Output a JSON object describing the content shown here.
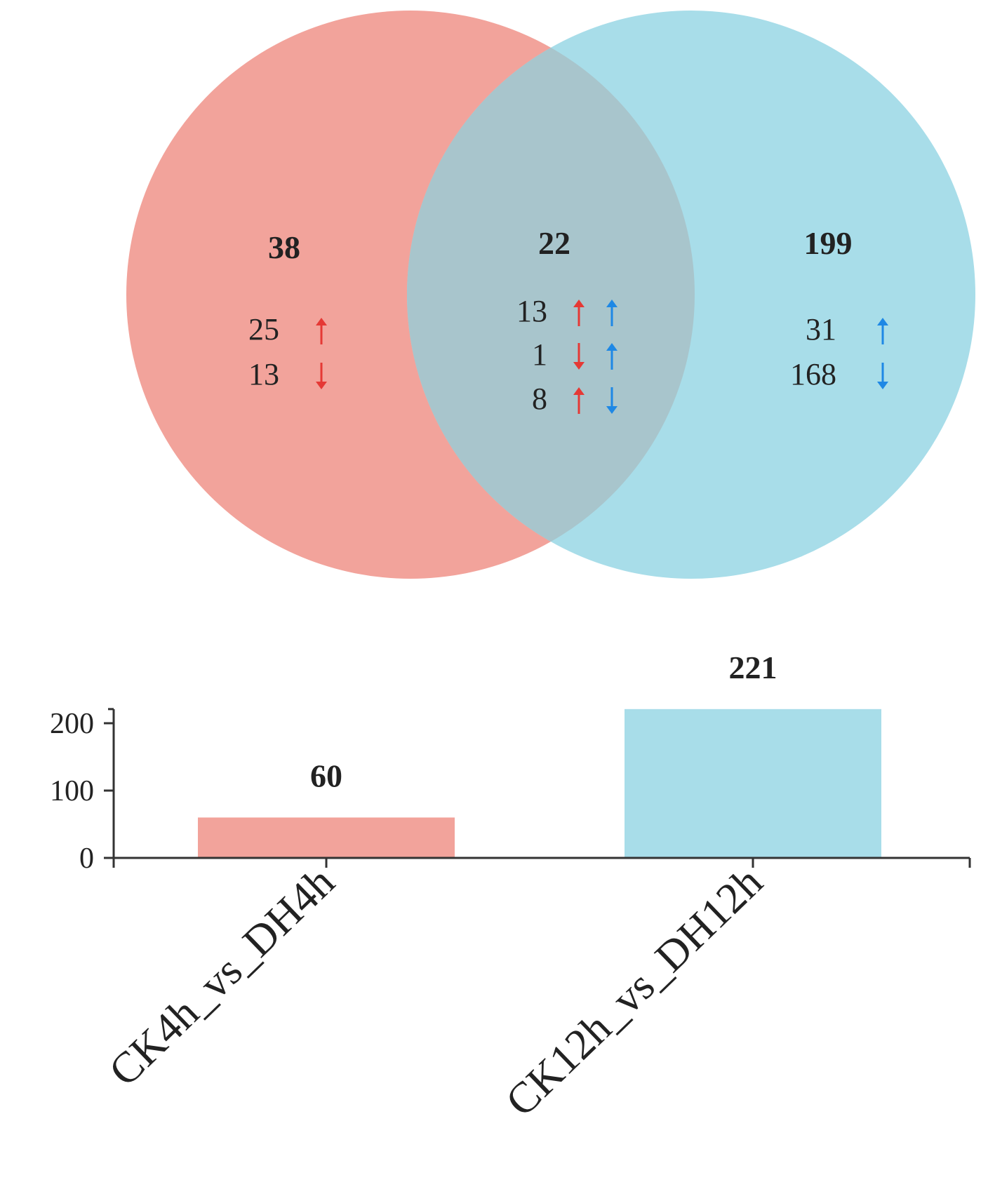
{
  "colors": {
    "group_a": "#f2a39b",
    "group_b": "#a8dde9",
    "overlap": "#a8c5cc",
    "up_down_a": "#e53935",
    "up_down_b": "#1e88e5",
    "axis": "#333333"
  },
  "chart_data": [
    {
      "type": "venn",
      "sets": [
        "CK4h_vs_DH4h",
        "CK12h_vs_DH12h"
      ],
      "regions": [
        {
          "id": "a_only",
          "total": "38",
          "rows": [
            {
              "count": "25",
              "arrows": [
                {
                  "dir": "up",
                  "color": "group_a"
                }
              ]
            },
            {
              "count": "13",
              "arrows": [
                {
                  "dir": "down",
                  "color": "group_a"
                }
              ]
            }
          ]
        },
        {
          "id": "overlap",
          "total": "22",
          "rows": [
            {
              "count": "13",
              "arrows": [
                {
                  "dir": "up",
                  "color": "group_a"
                },
                {
                  "dir": "up",
                  "color": "group_b"
                }
              ]
            },
            {
              "count": "1",
              "arrows": [
                {
                  "dir": "down",
                  "color": "group_a"
                },
                {
                  "dir": "up",
                  "color": "group_b"
                }
              ]
            },
            {
              "count": "8",
              "arrows": [
                {
                  "dir": "up",
                  "color": "group_a"
                },
                {
                  "dir": "down",
                  "color": "group_b"
                }
              ]
            }
          ]
        },
        {
          "id": "b_only",
          "total": "199",
          "rows": [
            {
              "count": "31",
              "arrows": [
                {
                  "dir": "up",
                  "color": "group_b"
                }
              ]
            },
            {
              "count": "168",
              "arrows": [
                {
                  "dir": "down",
                  "color": "group_b"
                }
              ]
            }
          ]
        }
      ]
    },
    {
      "type": "bar",
      "categories": [
        "CK4h_vs_DH4h",
        "CK12h_vs_DH12h"
      ],
      "values": [
        60,
        221
      ],
      "value_labels": [
        "60",
        "221"
      ],
      "yticks": [
        "0",
        "100",
        "200"
      ],
      "ylim": [
        0,
        221
      ],
      "grid": false,
      "xlabel": "",
      "ylabel": "",
      "title": ""
    }
  ]
}
